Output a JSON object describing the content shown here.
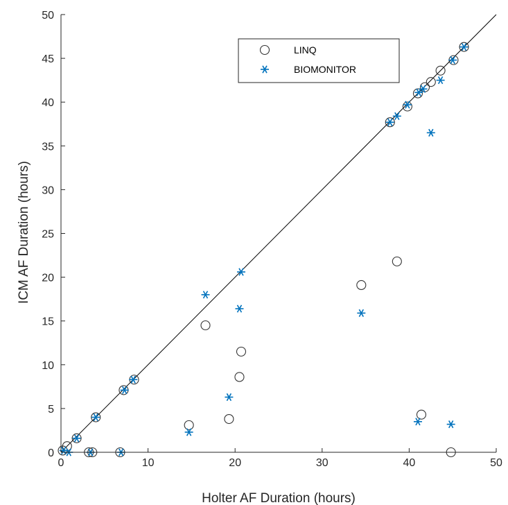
{
  "chart_data": {
    "type": "scatter",
    "title": "",
    "xlabel": "Holter AF Duration (hours)",
    "ylabel": "ICM AF Duration (hours)",
    "xlim": [
      0,
      50
    ],
    "ylim": [
      0,
      50
    ],
    "xticks": [
      "0",
      "10",
      "20",
      "30",
      "40",
      "50"
    ],
    "yticks": [
      "0",
      "5",
      "10",
      "15",
      "20",
      "25",
      "30",
      "35",
      "40",
      "45",
      "50"
    ],
    "grid": false,
    "legend_position": "top-right",
    "reference_line": "y = x",
    "series": [
      {
        "name": "LINQ",
        "marker": "circle",
        "color": "#000000",
        "points": [
          [
            0.2,
            0.2
          ],
          [
            0.7,
            0.7
          ],
          [
            1.8,
            1.6
          ],
          [
            3.2,
            0.0
          ],
          [
            3.6,
            0.0
          ],
          [
            4.0,
            4.0
          ],
          [
            6.8,
            0.0
          ],
          [
            7.2,
            7.1
          ],
          [
            8.4,
            8.3
          ],
          [
            14.7,
            3.1
          ],
          [
            16.6,
            14.5
          ],
          [
            19.3,
            3.8
          ],
          [
            20.5,
            8.6
          ],
          [
            20.7,
            11.5
          ],
          [
            34.5,
            19.1
          ],
          [
            38.6,
            21.8
          ],
          [
            37.8,
            37.7
          ],
          [
            39.8,
            39.5
          ],
          [
            41.0,
            41.0
          ],
          [
            41.4,
            4.3
          ],
          [
            41.8,
            41.7
          ],
          [
            42.5,
            42.3
          ],
          [
            43.6,
            43.6
          ],
          [
            44.8,
            0.0
          ],
          [
            45.1,
            44.8
          ],
          [
            46.3,
            46.3
          ]
        ]
      },
      {
        "name": "BIOMONITOR",
        "marker": "asterisk",
        "color": "#0072BD",
        "points": [
          [
            0.3,
            0.2
          ],
          [
            0.9,
            0.0
          ],
          [
            1.8,
            1.6
          ],
          [
            3.4,
            0.0
          ],
          [
            4.0,
            4.0
          ],
          [
            6.9,
            0.0
          ],
          [
            7.3,
            7.1
          ],
          [
            8.3,
            8.3
          ],
          [
            14.7,
            2.3
          ],
          [
            16.6,
            18.0
          ],
          [
            19.3,
            6.3
          ],
          [
            20.5,
            16.4
          ],
          [
            20.7,
            20.6
          ],
          [
            34.5,
            15.9
          ],
          [
            37.8,
            37.7
          ],
          [
            38.6,
            38.4
          ],
          [
            39.8,
            39.7
          ],
          [
            41.0,
            3.5
          ],
          [
            41.1,
            41.1
          ],
          [
            41.6,
            41.5
          ],
          [
            42.5,
            36.5
          ],
          [
            43.6,
            42.5
          ],
          [
            44.8,
            3.2
          ],
          [
            45.0,
            44.8
          ],
          [
            46.3,
            46.3
          ]
        ]
      }
    ]
  }
}
